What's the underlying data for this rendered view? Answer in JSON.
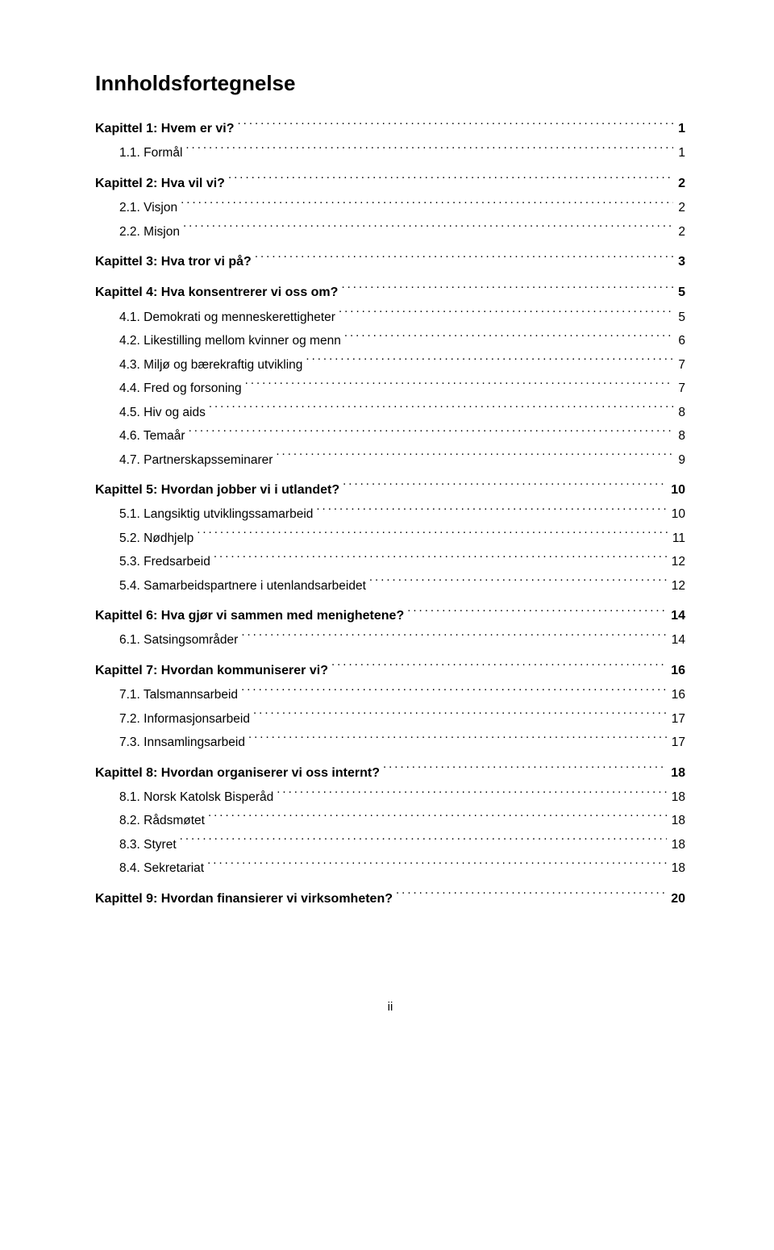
{
  "title": "Innholdsfortegnelse",
  "footer": "ii",
  "toc": [
    {
      "chapter": "Kapittel 1: Hvem er vi?",
      "page": "1",
      "items": [
        {
          "label": "1.1. Formål",
          "page": "1"
        }
      ]
    },
    {
      "chapter": "Kapittel 2: Hva vil vi?",
      "page": "2",
      "items": [
        {
          "label": "2.1. Visjon",
          "page": "2"
        },
        {
          "label": "2.2. Misjon",
          "page": "2"
        }
      ]
    },
    {
      "chapter": "Kapittel 3: Hva tror vi på?",
      "page": "3",
      "items": []
    },
    {
      "chapter": "Kapittel 4: Hva konsentrerer vi oss om?",
      "page": "5",
      "items": [
        {
          "label": "4.1. Demokrati og menneskerettigheter",
          "page": "5"
        },
        {
          "label": "4.2. Likestilling mellom kvinner og menn",
          "page": "6"
        },
        {
          "label": "4.3. Miljø og bærekraftig utvikling",
          "page": "7"
        },
        {
          "label": "4.4. Fred og forsoning",
          "page": "7"
        },
        {
          "label": "4.5. Hiv og aids",
          "page": "8"
        },
        {
          "label": "4.6. Temaår",
          "page": "8"
        },
        {
          "label": "4.7. Partnerskapsseminarer",
          "page": "9"
        }
      ]
    },
    {
      "chapter": "Kapittel 5: Hvordan jobber vi i utlandet?",
      "page": "10",
      "items": [
        {
          "label": "5.1. Langsiktig utviklingssamarbeid",
          "page": "10"
        },
        {
          "label": "5.2. Nødhjelp",
          "page": "11"
        },
        {
          "label": "5.3. Fredsarbeid",
          "page": "12"
        },
        {
          "label": "5.4. Samarbeidspartnere i utenlandsarbeidet",
          "page": "12"
        }
      ]
    },
    {
      "chapter": "Kapittel 6: Hva gjør vi sammen med menighetene?",
      "page": "14",
      "items": [
        {
          "label": "6.1. Satsingsområder",
          "page": "14"
        }
      ]
    },
    {
      "chapter": "Kapittel 7: Hvordan kommuniserer vi?",
      "page": "16",
      "items": [
        {
          "label": "7.1. Talsmannsarbeid",
          "page": "16"
        },
        {
          "label": "7.2. Informasjonsarbeid",
          "page": "17"
        },
        {
          "label": "7.3. Innsamlingsarbeid",
          "page": "17"
        }
      ]
    },
    {
      "chapter": "Kapittel 8: Hvordan organiserer vi oss internt?",
      "page": "18",
      "items": [
        {
          "label": "8.1. Norsk Katolsk Bisperåd",
          "page": "18"
        },
        {
          "label": "8.2.  Rådsmøtet",
          "page": "18"
        },
        {
          "label": "8.3.  Styret",
          "page": "18"
        },
        {
          "label": "8.4. Sekretariat",
          "page": "18"
        }
      ]
    },
    {
      "chapter": "Kapittel 9: Hvordan finansierer vi virksomheten?",
      "page": "20",
      "items": []
    }
  ]
}
